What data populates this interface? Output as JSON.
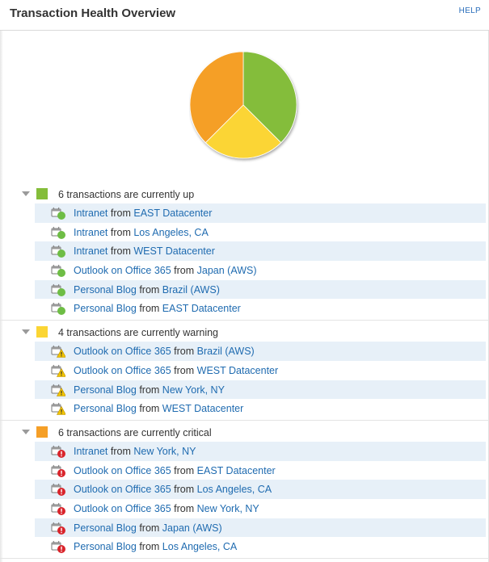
{
  "header": {
    "title": "Transaction Health Overview",
    "help_label": "HELP"
  },
  "colors": {
    "up": "#84bd3a",
    "warning": "#fbd534",
    "critical": "#f59f27",
    "link": "#1f6bb0",
    "alt_row": "#e7f0f8",
    "status_up": "#6ebd45",
    "status_critical": "#d9242b",
    "status_warning": "#f2c400"
  },
  "chart_data": {
    "type": "pie",
    "title": "",
    "slices": [
      {
        "label": "up",
        "value": 6,
        "color": "#84bd3a"
      },
      {
        "label": "warning",
        "value": 4,
        "color": "#fbd534"
      },
      {
        "label": "critical",
        "value": 6,
        "color": "#f59f27"
      }
    ]
  },
  "groups": [
    {
      "status": "up",
      "label": "6 transactions are currently up",
      "rows": [
        {
          "app": "Intranet",
          "from": "from",
          "location": "EAST Datacenter"
        },
        {
          "app": "Intranet",
          "from": "from",
          "location": "Los Angeles, CA"
        },
        {
          "app": "Intranet",
          "from": "from",
          "location": "WEST Datacenter"
        },
        {
          "app": "Outlook on Office 365",
          "from": "from",
          "location": "Japan (AWS)"
        },
        {
          "app": "Personal Blog",
          "from": "from",
          "location": "Brazil (AWS)"
        },
        {
          "app": "Personal Blog",
          "from": "from",
          "location": "EAST Datacenter"
        }
      ]
    },
    {
      "status": "warning",
      "label": "4 transactions are currently warning",
      "rows": [
        {
          "app": "Outlook on Office 365",
          "from": "from",
          "location": "Brazil (AWS)"
        },
        {
          "app": "Outlook on Office 365",
          "from": "from",
          "location": "WEST Datacenter"
        },
        {
          "app": "Personal Blog",
          "from": "from",
          "location": "New York, NY"
        },
        {
          "app": "Personal Blog",
          "from": "from",
          "location": "WEST Datacenter"
        }
      ]
    },
    {
      "status": "critical",
      "label": "6 transactions are currently critical",
      "rows": [
        {
          "app": "Intranet",
          "from": "from",
          "location": "New York, NY"
        },
        {
          "app": "Outlook on Office 365",
          "from": "from",
          "location": "EAST Datacenter"
        },
        {
          "app": "Outlook on Office 365",
          "from": "from",
          "location": "Los Angeles, CA"
        },
        {
          "app": "Outlook on Office 365",
          "from": "from",
          "location": "New York, NY"
        },
        {
          "app": "Personal Blog",
          "from": "from",
          "location": "Japan (AWS)"
        },
        {
          "app": "Personal Blog",
          "from": "from",
          "location": "Los Angeles, CA"
        }
      ]
    }
  ]
}
